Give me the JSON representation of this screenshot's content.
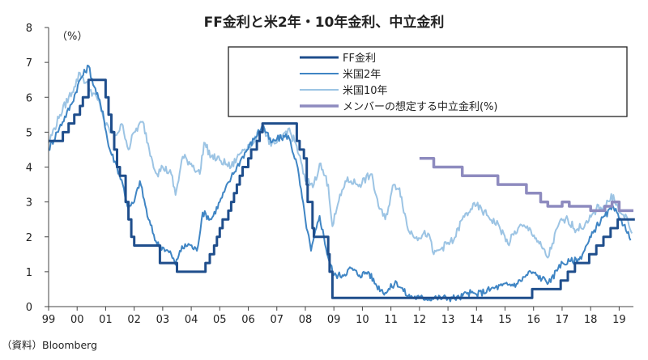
{
  "chart_data": {
    "type": "line",
    "title": "FF金利と米2年・10年金利、中立金利",
    "ylabel": "（%）",
    "source": "（資料）Bloomberg",
    "ylim": [
      0,
      8
    ],
    "yticks": [
      "0",
      "1",
      "2",
      "3",
      "4",
      "5",
      "6",
      "7",
      "8"
    ],
    "xlim": [
      1999,
      2019.5
    ],
    "xticks": [
      {
        "x": 1999,
        "label": "99"
      },
      {
        "x": 2000,
        "label": "00"
      },
      {
        "x": 2001,
        "label": "01"
      },
      {
        "x": 2002,
        "label": "02"
      },
      {
        "x": 2003,
        "label": "03"
      },
      {
        "x": 2004,
        "label": "04"
      },
      {
        "x": 2005,
        "label": "05"
      },
      {
        "x": 2006,
        "label": "06"
      },
      {
        "x": 2007,
        "label": "07"
      },
      {
        "x": 2008,
        "label": "08"
      },
      {
        "x": 2009,
        "label": "09"
      },
      {
        "x": 2010,
        "label": "10"
      },
      {
        "x": 2011,
        "label": "11"
      },
      {
        "x": 2012,
        "label": "12"
      },
      {
        "x": 2013,
        "label": "13"
      },
      {
        "x": 2014,
        "label": "14"
      },
      {
        "x": 2015,
        "label": "15"
      },
      {
        "x": 2016,
        "label": "16"
      },
      {
        "x": 2017,
        "label": "17"
      },
      {
        "x": 2018,
        "label": "18"
      },
      {
        "x": 2019,
        "label": "19"
      }
    ],
    "grid": false,
    "legend_position": "top-right",
    "series": [
      {
        "name": "FF金利",
        "color": "#1f4e8c",
        "width": 3,
        "step": true,
        "noise": 0,
        "points": [
          [
            1999.0,
            4.75
          ],
          [
            1999.5,
            5.0
          ],
          [
            1999.7,
            5.25
          ],
          [
            1999.9,
            5.5
          ],
          [
            2000.1,
            5.75
          ],
          [
            2000.2,
            6.0
          ],
          [
            2000.4,
            6.5
          ],
          [
            2001.0,
            6.0
          ],
          [
            2001.1,
            5.5
          ],
          [
            2001.2,
            5.0
          ],
          [
            2001.3,
            4.5
          ],
          [
            2001.4,
            4.0
          ],
          [
            2001.5,
            3.75
          ],
          [
            2001.7,
            3.0
          ],
          [
            2001.8,
            2.5
          ],
          [
            2001.9,
            2.0
          ],
          [
            2002.0,
            1.75
          ],
          [
            2002.9,
            1.25
          ],
          [
            2003.5,
            1.0
          ],
          [
            2004.5,
            1.25
          ],
          [
            2004.65,
            1.5
          ],
          [
            2004.8,
            1.75
          ],
          [
            2004.9,
            2.0
          ],
          [
            2005.0,
            2.25
          ],
          [
            2005.1,
            2.5
          ],
          [
            2005.3,
            2.75
          ],
          [
            2005.4,
            3.0
          ],
          [
            2005.5,
            3.25
          ],
          [
            2005.6,
            3.5
          ],
          [
            2005.7,
            3.75
          ],
          [
            2005.8,
            4.0
          ],
          [
            2006.0,
            4.25
          ],
          [
            2006.1,
            4.5
          ],
          [
            2006.3,
            4.75
          ],
          [
            2006.4,
            5.0
          ],
          [
            2006.5,
            5.25
          ],
          [
            2007.7,
            4.75
          ],
          [
            2007.8,
            4.5
          ],
          [
            2007.95,
            4.25
          ],
          [
            2008.05,
            3.5
          ],
          [
            2008.08,
            3.0
          ],
          [
            2008.25,
            2.25
          ],
          [
            2008.3,
            2.0
          ],
          [
            2008.8,
            1.5
          ],
          [
            2008.85,
            1.0
          ],
          [
            2008.95,
            0.25
          ],
          [
            2015.95,
            0.5
          ],
          [
            2016.95,
            0.75
          ],
          [
            2017.2,
            1.0
          ],
          [
            2017.45,
            1.25
          ],
          [
            2017.95,
            1.5
          ],
          [
            2018.2,
            1.75
          ],
          [
            2018.45,
            2.0
          ],
          [
            2018.7,
            2.25
          ],
          [
            2018.95,
            2.5
          ],
          [
            2019.55,
            2.5
          ]
        ]
      },
      {
        "name": "米国2年",
        "color": "#3f85c4",
        "width": 2,
        "step": false,
        "noise": 0.1,
        "points": [
          [
            1999.0,
            4.5
          ],
          [
            1999.3,
            5.0
          ],
          [
            1999.8,
            5.8
          ],
          [
            2000.1,
            6.5
          ],
          [
            2000.4,
            6.9
          ],
          [
            2000.6,
            6.3
          ],
          [
            2000.9,
            5.6
          ],
          [
            2001.1,
            4.6
          ],
          [
            2001.4,
            4.0
          ],
          [
            2001.6,
            3.5
          ],
          [
            2001.8,
            2.8
          ],
          [
            2002.0,
            3.0
          ],
          [
            2002.2,
            3.6
          ],
          [
            2002.5,
            2.5
          ],
          [
            2002.8,
            1.8
          ],
          [
            2003.0,
            1.7
          ],
          [
            2003.3,
            1.5
          ],
          [
            2003.45,
            1.2
          ],
          [
            2003.6,
            1.6
          ],
          [
            2003.9,
            1.8
          ],
          [
            2004.2,
            1.6
          ],
          [
            2004.4,
            2.7
          ],
          [
            2004.7,
            2.5
          ],
          [
            2005.0,
            3.0
          ],
          [
            2005.4,
            3.7
          ],
          [
            2005.8,
            4.3
          ],
          [
            2006.2,
            4.8
          ],
          [
            2006.5,
            5.2
          ],
          [
            2006.8,
            4.7
          ],
          [
            2007.0,
            4.8
          ],
          [
            2007.4,
            4.9
          ],
          [
            2007.7,
            4.1
          ],
          [
            2008.0,
            2.5
          ],
          [
            2008.2,
            1.6
          ],
          [
            2008.5,
            2.6
          ],
          [
            2008.8,
            1.4
          ],
          [
            2009.0,
            0.9
          ],
          [
            2009.3,
            0.9
          ],
          [
            2009.6,
            1.1
          ],
          [
            2009.9,
            0.9
          ],
          [
            2010.2,
            1.0
          ],
          [
            2010.5,
            0.6
          ],
          [
            2010.8,
            0.4
          ],
          [
            2011.2,
            0.7
          ],
          [
            2011.6,
            0.3
          ],
          [
            2012.0,
            0.25
          ],
          [
            2012.6,
            0.25
          ],
          [
            2013.0,
            0.25
          ],
          [
            2013.4,
            0.25
          ],
          [
            2013.7,
            0.4
          ],
          [
            2014.0,
            0.35
          ],
          [
            2014.5,
            0.5
          ],
          [
            2014.9,
            0.6
          ],
          [
            2015.4,
            0.65
          ],
          [
            2015.9,
            1.0
          ],
          [
            2016.3,
            0.8
          ],
          [
            2016.6,
            0.7
          ],
          [
            2016.9,
            1.2
          ],
          [
            2017.3,
            1.3
          ],
          [
            2017.6,
            1.35
          ],
          [
            2017.9,
            1.8
          ],
          [
            2018.2,
            2.3
          ],
          [
            2018.5,
            2.6
          ],
          [
            2018.8,
            2.85
          ],
          [
            2019.0,
            2.5
          ],
          [
            2019.2,
            2.35
          ],
          [
            2019.4,
            1.9
          ]
        ]
      },
      {
        "name": "米国10年",
        "color": "#9cc4e4",
        "width": 2,
        "step": false,
        "noise": 0.12,
        "points": [
          [
            1999.0,
            4.7
          ],
          [
            1999.4,
            5.5
          ],
          [
            1999.9,
            6.3
          ],
          [
            2000.1,
            6.7
          ],
          [
            2000.4,
            6.3
          ],
          [
            2000.8,
            5.8
          ],
          [
            2001.0,
            5.2
          ],
          [
            2001.3,
            4.9
          ],
          [
            2001.6,
            5.2
          ],
          [
            2001.8,
            4.5
          ],
          [
            2002.0,
            5.0
          ],
          [
            2002.3,
            5.3
          ],
          [
            2002.6,
            4.3
          ],
          [
            2002.8,
            3.8
          ],
          [
            2003.0,
            4.0
          ],
          [
            2003.3,
            3.8
          ],
          [
            2003.45,
            3.2
          ],
          [
            2003.7,
            4.3
          ],
          [
            2004.0,
            4.1
          ],
          [
            2004.3,
            3.8
          ],
          [
            2004.45,
            4.7
          ],
          [
            2004.7,
            4.3
          ],
          [
            2005.0,
            4.2
          ],
          [
            2005.4,
            4.0
          ],
          [
            2005.8,
            4.5
          ],
          [
            2006.2,
            4.7
          ],
          [
            2006.5,
            5.2
          ],
          [
            2006.8,
            4.6
          ],
          [
            2007.0,
            4.7
          ],
          [
            2007.4,
            5.1
          ],
          [
            2007.7,
            4.6
          ],
          [
            2008.0,
            3.6
          ],
          [
            2008.3,
            3.5
          ],
          [
            2008.5,
            4.1
          ],
          [
            2008.8,
            3.5
          ],
          [
            2008.95,
            2.3
          ],
          [
            2009.1,
            2.8
          ],
          [
            2009.4,
            3.6
          ],
          [
            2009.6,
            3.6
          ],
          [
            2009.9,
            3.5
          ],
          [
            2010.3,
            3.8
          ],
          [
            2010.6,
            2.8
          ],
          [
            2010.8,
            2.5
          ],
          [
            2011.1,
            3.5
          ],
          [
            2011.3,
            3.4
          ],
          [
            2011.6,
            2.2
          ],
          [
            2011.9,
            2.0
          ],
          [
            2012.3,
            2.1
          ],
          [
            2012.5,
            1.5
          ],
          [
            2012.8,
            1.7
          ],
          [
            2013.2,
            1.9
          ],
          [
            2013.5,
            2.5
          ],
          [
            2013.8,
            2.8
          ],
          [
            2014.0,
            2.9
          ],
          [
            2014.4,
            2.6
          ],
          [
            2014.8,
            2.3
          ],
          [
            2015.1,
            1.8
          ],
          [
            2015.5,
            2.3
          ],
          [
            2015.9,
            2.2
          ],
          [
            2016.2,
            1.8
          ],
          [
            2016.5,
            1.4
          ],
          [
            2016.9,
            2.4
          ],
          [
            2017.2,
            2.5
          ],
          [
            2017.5,
            2.2
          ],
          [
            2017.9,
            2.4
          ],
          [
            2018.2,
            2.8
          ],
          [
            2018.5,
            2.9
          ],
          [
            2018.8,
            3.2
          ],
          [
            2019.0,
            2.7
          ],
          [
            2019.3,
            2.5
          ],
          [
            2019.45,
            2.1
          ]
        ]
      },
      {
        "name": "メンバーの想定する中立金利(%)",
        "color": "#8e8bbf",
        "width": 3.5,
        "step": true,
        "noise": 0,
        "points": [
          [
            2012.0,
            4.25
          ],
          [
            2012.5,
            4.0
          ],
          [
            2013.5,
            3.75
          ],
          [
            2014.5,
            3.75
          ],
          [
            2014.75,
            3.5
          ],
          [
            2015.5,
            3.5
          ],
          [
            2015.75,
            3.25
          ],
          [
            2016.25,
            3.0
          ],
          [
            2016.5,
            2.875
          ],
          [
            2017.0,
            3.0
          ],
          [
            2017.25,
            2.875
          ],
          [
            2017.75,
            2.875
          ],
          [
            2018.0,
            2.75
          ],
          [
            2018.5,
            2.875
          ],
          [
            2018.75,
            3.0
          ],
          [
            2019.0,
            2.75
          ],
          [
            2019.5,
            2.75
          ]
        ]
      }
    ]
  }
}
